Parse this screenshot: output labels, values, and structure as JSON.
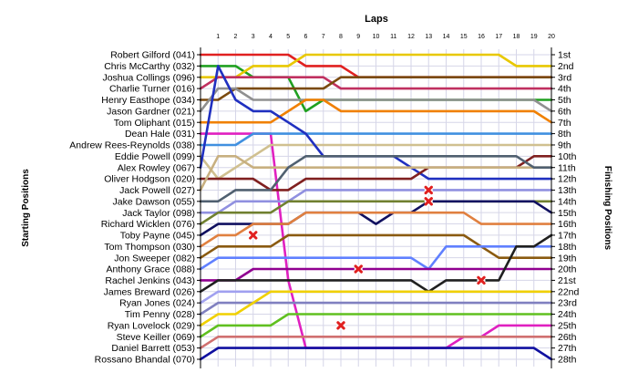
{
  "chart_data": {
    "type": "line",
    "title": "Laps",
    "ylabel_left": "Starting Positions",
    "ylabel_right": "Finishing Positions",
    "x": [
      0,
      1,
      2,
      3,
      4,
      5,
      6,
      7,
      8,
      9,
      10,
      11,
      12,
      13,
      14,
      15,
      16,
      17,
      18,
      19,
      20
    ],
    "x_tick_labels": [
      "1",
      "2",
      "3",
      "4",
      "5",
      "6",
      "7",
      "8",
      "9",
      "10",
      "11",
      "12",
      "13",
      "14",
      "15",
      "16",
      "17",
      "18",
      "19",
      "20"
    ],
    "finishing_labels": [
      "1st",
      "2nd",
      "3rd",
      "4th",
      "5th",
      "6th",
      "7th",
      "8th",
      "9th",
      "10th",
      "11th",
      "12th",
      "13th",
      "14th",
      "15th",
      "16th",
      "17th",
      "18th",
      "19th",
      "20th",
      "21st",
      "22nd",
      "23rd",
      "24th",
      "25th",
      "26th",
      "27th",
      "28th"
    ],
    "ylim": [
      1,
      28
    ],
    "grid": true,
    "series": [
      {
        "name": "Robert Gilford (041)",
        "color": "#e02020",
        "values": [
          1,
          1,
          1,
          1,
          1,
          1,
          2,
          2,
          2,
          3,
          3,
          3,
          3,
          3,
          3,
          3,
          3,
          3,
          3,
          3,
          3
        ]
      },
      {
        "name": "Chris McCarthy (032)",
        "color": "#20a020",
        "values": [
          2,
          2,
          2,
          3,
          3,
          3,
          6,
          5,
          5,
          5,
          5,
          5,
          5,
          5,
          5,
          5,
          5,
          5,
          5,
          5,
          5
        ]
      },
      {
        "name": "Joshua Collings (096)",
        "color": "#e8c800",
        "values": [
          3,
          3,
          3,
          2,
          2,
          2,
          1,
          1,
          1,
          1,
          1,
          1,
          1,
          1,
          1,
          1,
          1,
          1,
          2,
          2,
          2
        ]
      },
      {
        "name": "Charlie Turner (016)",
        "color": "#c03060",
        "values": [
          4,
          3,
          3,
          3,
          3,
          3,
          3,
          3,
          4,
          4,
          4,
          4,
          4,
          4,
          4,
          4,
          4,
          4,
          4,
          4,
          4
        ]
      },
      {
        "name": "Henry Easthope (034)",
        "color": "#7a4a10",
        "values": [
          5,
          5,
          4,
          4,
          4,
          4,
          4,
          4,
          3,
          3,
          3,
          3,
          3,
          3,
          3,
          3,
          3,
          3,
          3,
          3,
          3
        ]
      },
      {
        "name": "Jason Gardner (021)",
        "color": "#909090",
        "values": [
          6,
          4,
          4,
          5,
          5,
          5,
          5,
          5,
          5,
          5,
          5,
          5,
          5,
          5,
          5,
          5,
          5,
          5,
          5,
          5,
          6
        ]
      },
      {
        "name": "Tom Oliphant (015)",
        "color": "#f08000",
        "values": [
          7,
          7,
          7,
          7,
          7,
          6,
          5,
          5,
          6,
          6,
          6,
          6,
          6,
          6,
          6,
          6,
          6,
          6,
          6,
          6,
          7
        ]
      },
      {
        "name": "Dean Hale (031)",
        "color": "#e020c0",
        "values": [
          8,
          8,
          8,
          8,
          8,
          21,
          27,
          27,
          27,
          27,
          27,
          27,
          27,
          27,
          27,
          26,
          26,
          25,
          25,
          25,
          25
        ]
      },
      {
        "name": "Andrew Rees-Reynolds (038)",
        "color": "#4090e0",
        "values": [
          9,
          9,
          9,
          8,
          8,
          8,
          8,
          8,
          8,
          8,
          8,
          8,
          8,
          8,
          8,
          8,
          8,
          8,
          8,
          8,
          8
        ]
      },
      {
        "name": "Eddie Powell (099)",
        "color": "#d0c090",
        "values": [
          10,
          12,
          11,
          10,
          9,
          9,
          9,
          9,
          9,
          9,
          9,
          9,
          9,
          9,
          9,
          9,
          9,
          9,
          9,
          9,
          9
        ]
      },
      {
        "name": "Alex Rowley (067)",
        "color": "#2030c0",
        "values": [
          11,
          2,
          5,
          6,
          6,
          7,
          8,
          10,
          10,
          10,
          10,
          10,
          11,
          12,
          12,
          12,
          12,
          12,
          12,
          12,
          12
        ]
      },
      {
        "name": "Oliver Hodgson (020)",
        "color": "#802020",
        "values": [
          12,
          12,
          12,
          12,
          13,
          13,
          12,
          12,
          12,
          12,
          12,
          12,
          12,
          11,
          11,
          11,
          11,
          11,
          11,
          10,
          10
        ]
      },
      {
        "name": "Jack Powell (027)",
        "color": "#c8b080",
        "values": [
          13,
          10,
          10,
          11,
          11,
          11,
          11,
          11,
          11,
          11,
          11,
          11,
          11,
          11,
          11,
          11,
          11,
          11,
          11,
          11,
          11
        ]
      },
      {
        "name": "Jake Dawson (055)",
        "color": "#506070",
        "values": [
          14,
          14,
          13,
          13,
          13,
          11,
          10,
          10,
          10,
          10,
          10,
          10,
          10,
          10,
          10,
          10,
          10,
          10,
          10,
          11,
          11
        ]
      },
      {
        "name": "Jack Taylor (098)",
        "color": "#9090e0",
        "values": [
          15,
          15,
          14,
          14,
          14,
          14,
          13,
          13,
          13,
          13,
          13,
          13,
          13,
          13,
          13,
          13,
          13,
          13,
          13,
          13,
          13
        ]
      },
      {
        "name": "Richard Wicklen (076)",
        "color": "#708030",
        "values": [
          16,
          15,
          15,
          15,
          15,
          14,
          14,
          14,
          14,
          14,
          14,
          14,
          14,
          14,
          14,
          14,
          14,
          14,
          14,
          14,
          14
        ]
      },
      {
        "name": "Toby Payne (045)",
        "color": "#101060",
        "values": [
          17,
          16,
          16,
          16,
          16,
          16,
          15,
          15,
          15,
          15,
          16,
          15,
          15,
          14,
          14,
          14,
          14,
          14,
          14,
          14,
          15
        ]
      },
      {
        "name": "Tom Thompson (030)",
        "color": "#e08040",
        "values": [
          18,
          17,
          17,
          16,
          16,
          16,
          15,
          15,
          15,
          15,
          15,
          15,
          15,
          15,
          15,
          15,
          16,
          16,
          16,
          16,
          16
        ]
      },
      {
        "name": "Jon Sweeper (082)",
        "color": "#8a5a10",
        "values": [
          19,
          18,
          18,
          18,
          18,
          17,
          17,
          17,
          17,
          17,
          17,
          17,
          17,
          17,
          17,
          17,
          18,
          19,
          19,
          19,
          19
        ]
      },
      {
        "name": "Anthony Grace (088)",
        "color": "#6080ff",
        "values": [
          20,
          19,
          19,
          19,
          19,
          19,
          19,
          19,
          19,
          19,
          19,
          19,
          19,
          20,
          18,
          18,
          18,
          18,
          18,
          18,
          18
        ]
      },
      {
        "name": "Rachel Jenkins (043)",
        "color": "#900090",
        "values": [
          21,
          21,
          21,
          20,
          20,
          20,
          20,
          20,
          20,
          20,
          20,
          20,
          20,
          20,
          20,
          20,
          20,
          20,
          20,
          20,
          20
        ]
      },
      {
        "name": "James Breward (026)",
        "color": "#202020",
        "values": [
          22,
          21,
          21,
          21,
          21,
          21,
          21,
          21,
          21,
          21,
          21,
          21,
          21,
          22,
          21,
          21,
          21,
          21,
          18,
          18,
          17
        ]
      },
      {
        "name": "Ryan Jones (024)",
        "color": "#a0a0f0",
        "values": [
          23,
          22,
          22,
          22,
          22,
          22,
          22,
          22,
          22,
          22,
          22,
          22,
          22,
          22,
          22,
          22,
          22,
          22,
          22,
          22,
          22
        ]
      },
      {
        "name": "Tim Penny (028)",
        "color": "#8080c0",
        "values": [
          24,
          23,
          23,
          23,
          23,
          23,
          23,
          23,
          23,
          23,
          23,
          23,
          23,
          23,
          23,
          23,
          23,
          23,
          23,
          23,
          23
        ]
      },
      {
        "name": "Ryan Lovelock (029)",
        "color": "#f0d000",
        "values": [
          25,
          24,
          24,
          23,
          22,
          22,
          22,
          22,
          22,
          22,
          22,
          22,
          22,
          22,
          22,
          22,
          22,
          22,
          22,
          22,
          22
        ]
      },
      {
        "name": "Steve Keiller (069)",
        "color": "#60c020",
        "values": [
          26,
          25,
          25,
          25,
          25,
          24,
          24,
          24,
          24,
          24,
          24,
          24,
          24,
          24,
          24,
          24,
          24,
          24,
          24,
          24,
          24
        ]
      },
      {
        "name": "Daniel Barrett (053)",
        "color": "#d07070",
        "values": [
          27,
          26,
          26,
          26,
          26,
          26,
          26,
          26,
          26,
          26,
          26,
          26,
          26,
          26,
          26,
          26,
          26,
          26,
          26,
          26,
          26
        ]
      },
      {
        "name": "Rossano Bhandal (070)",
        "color": "#1010a0",
        "values": [
          28,
          27,
          27,
          27,
          27,
          27,
          27,
          27,
          27,
          27,
          27,
          27,
          27,
          27,
          27,
          27,
          27,
          27,
          27,
          27,
          28
        ]
      }
    ],
    "retirements": [
      {
        "lap": 3,
        "position": 17,
        "color": "#e02020"
      },
      {
        "lap": 8,
        "position": 25,
        "color": "#e02020"
      },
      {
        "lap": 9,
        "position": 20,
        "color": "#e02020"
      },
      {
        "lap": 13,
        "position": 13,
        "color": "#e02020"
      },
      {
        "lap": 13,
        "position": 14,
        "color": "#e02020"
      },
      {
        "lap": 16,
        "position": 21,
        "color": "#e02020"
      }
    ]
  }
}
